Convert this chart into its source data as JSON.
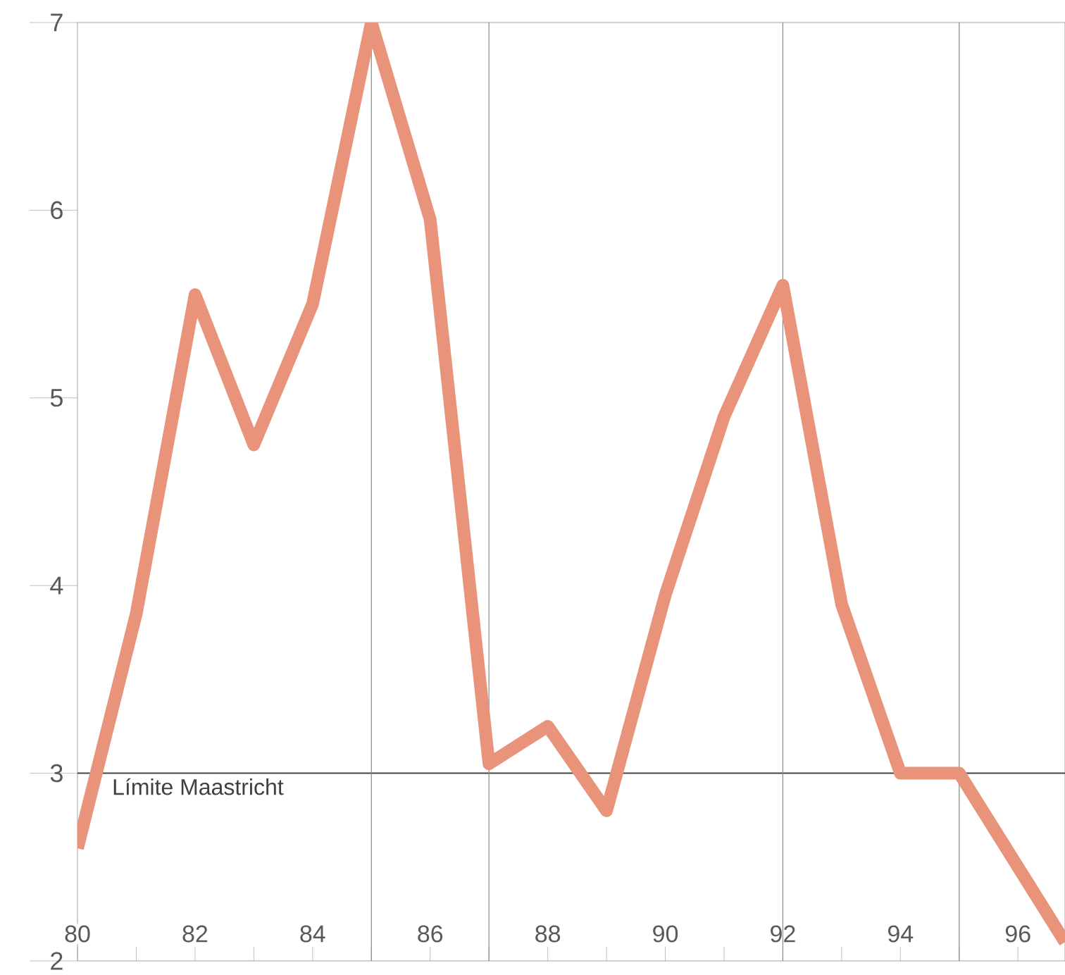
{
  "chart_data": {
    "type": "line",
    "x": [
      80,
      81,
      82,
      83,
      84,
      85,
      86,
      87,
      88,
      89,
      90,
      91,
      92,
      93,
      94,
      95,
      96.8
    ],
    "series": [
      {
        "color": "#e8937a",
        "values": [
          2.6,
          3.85,
          5.55,
          4.75,
          5.5,
          7.0,
          5.95,
          3.05,
          3.25,
          2.8,
          3.95,
          4.9,
          5.6,
          3.9,
          3.0,
          3.0,
          2.1
        ]
      }
    ],
    "xlim": [
      80,
      96.8
    ],
    "ylim": [
      2,
      7
    ],
    "xticks": [
      {
        "value": 80,
        "label": "80"
      },
      {
        "value": 81,
        "label": null
      },
      {
        "value": 82,
        "label": "82"
      },
      {
        "value": 83,
        "label": null
      },
      {
        "value": 84,
        "label": "84"
      },
      {
        "value": 85,
        "label": null
      },
      {
        "value": 86,
        "label": "86"
      },
      {
        "value": 87,
        "label": null
      },
      {
        "value": 88,
        "label": "88"
      },
      {
        "value": 89,
        "label": null
      },
      {
        "value": 90,
        "label": "90"
      },
      {
        "value": 91,
        "label": null
      },
      {
        "value": 92,
        "label": "92"
      },
      {
        "value": 93,
        "label": null
      },
      {
        "value": 94,
        "label": "94"
      },
      {
        "value": 95,
        "label": null
      },
      {
        "value": 96,
        "label": "96"
      }
    ],
    "yticks": [
      2,
      3,
      4,
      5,
      6,
      7
    ],
    "ref_lines": [
      {
        "axis": "y",
        "value": 3,
        "label": "Límite Maastricht",
        "color": "#444444"
      },
      {
        "axis": "x",
        "value": 85,
        "color": "#888888"
      },
      {
        "axis": "x",
        "value": 87,
        "color": "#888888"
      },
      {
        "axis": "x",
        "value": 92,
        "color": "#888888"
      },
      {
        "axis": "x",
        "value": 95,
        "color": "#888888"
      }
    ],
    "grid": false,
    "marker": "none",
    "line_style": "solid"
  }
}
